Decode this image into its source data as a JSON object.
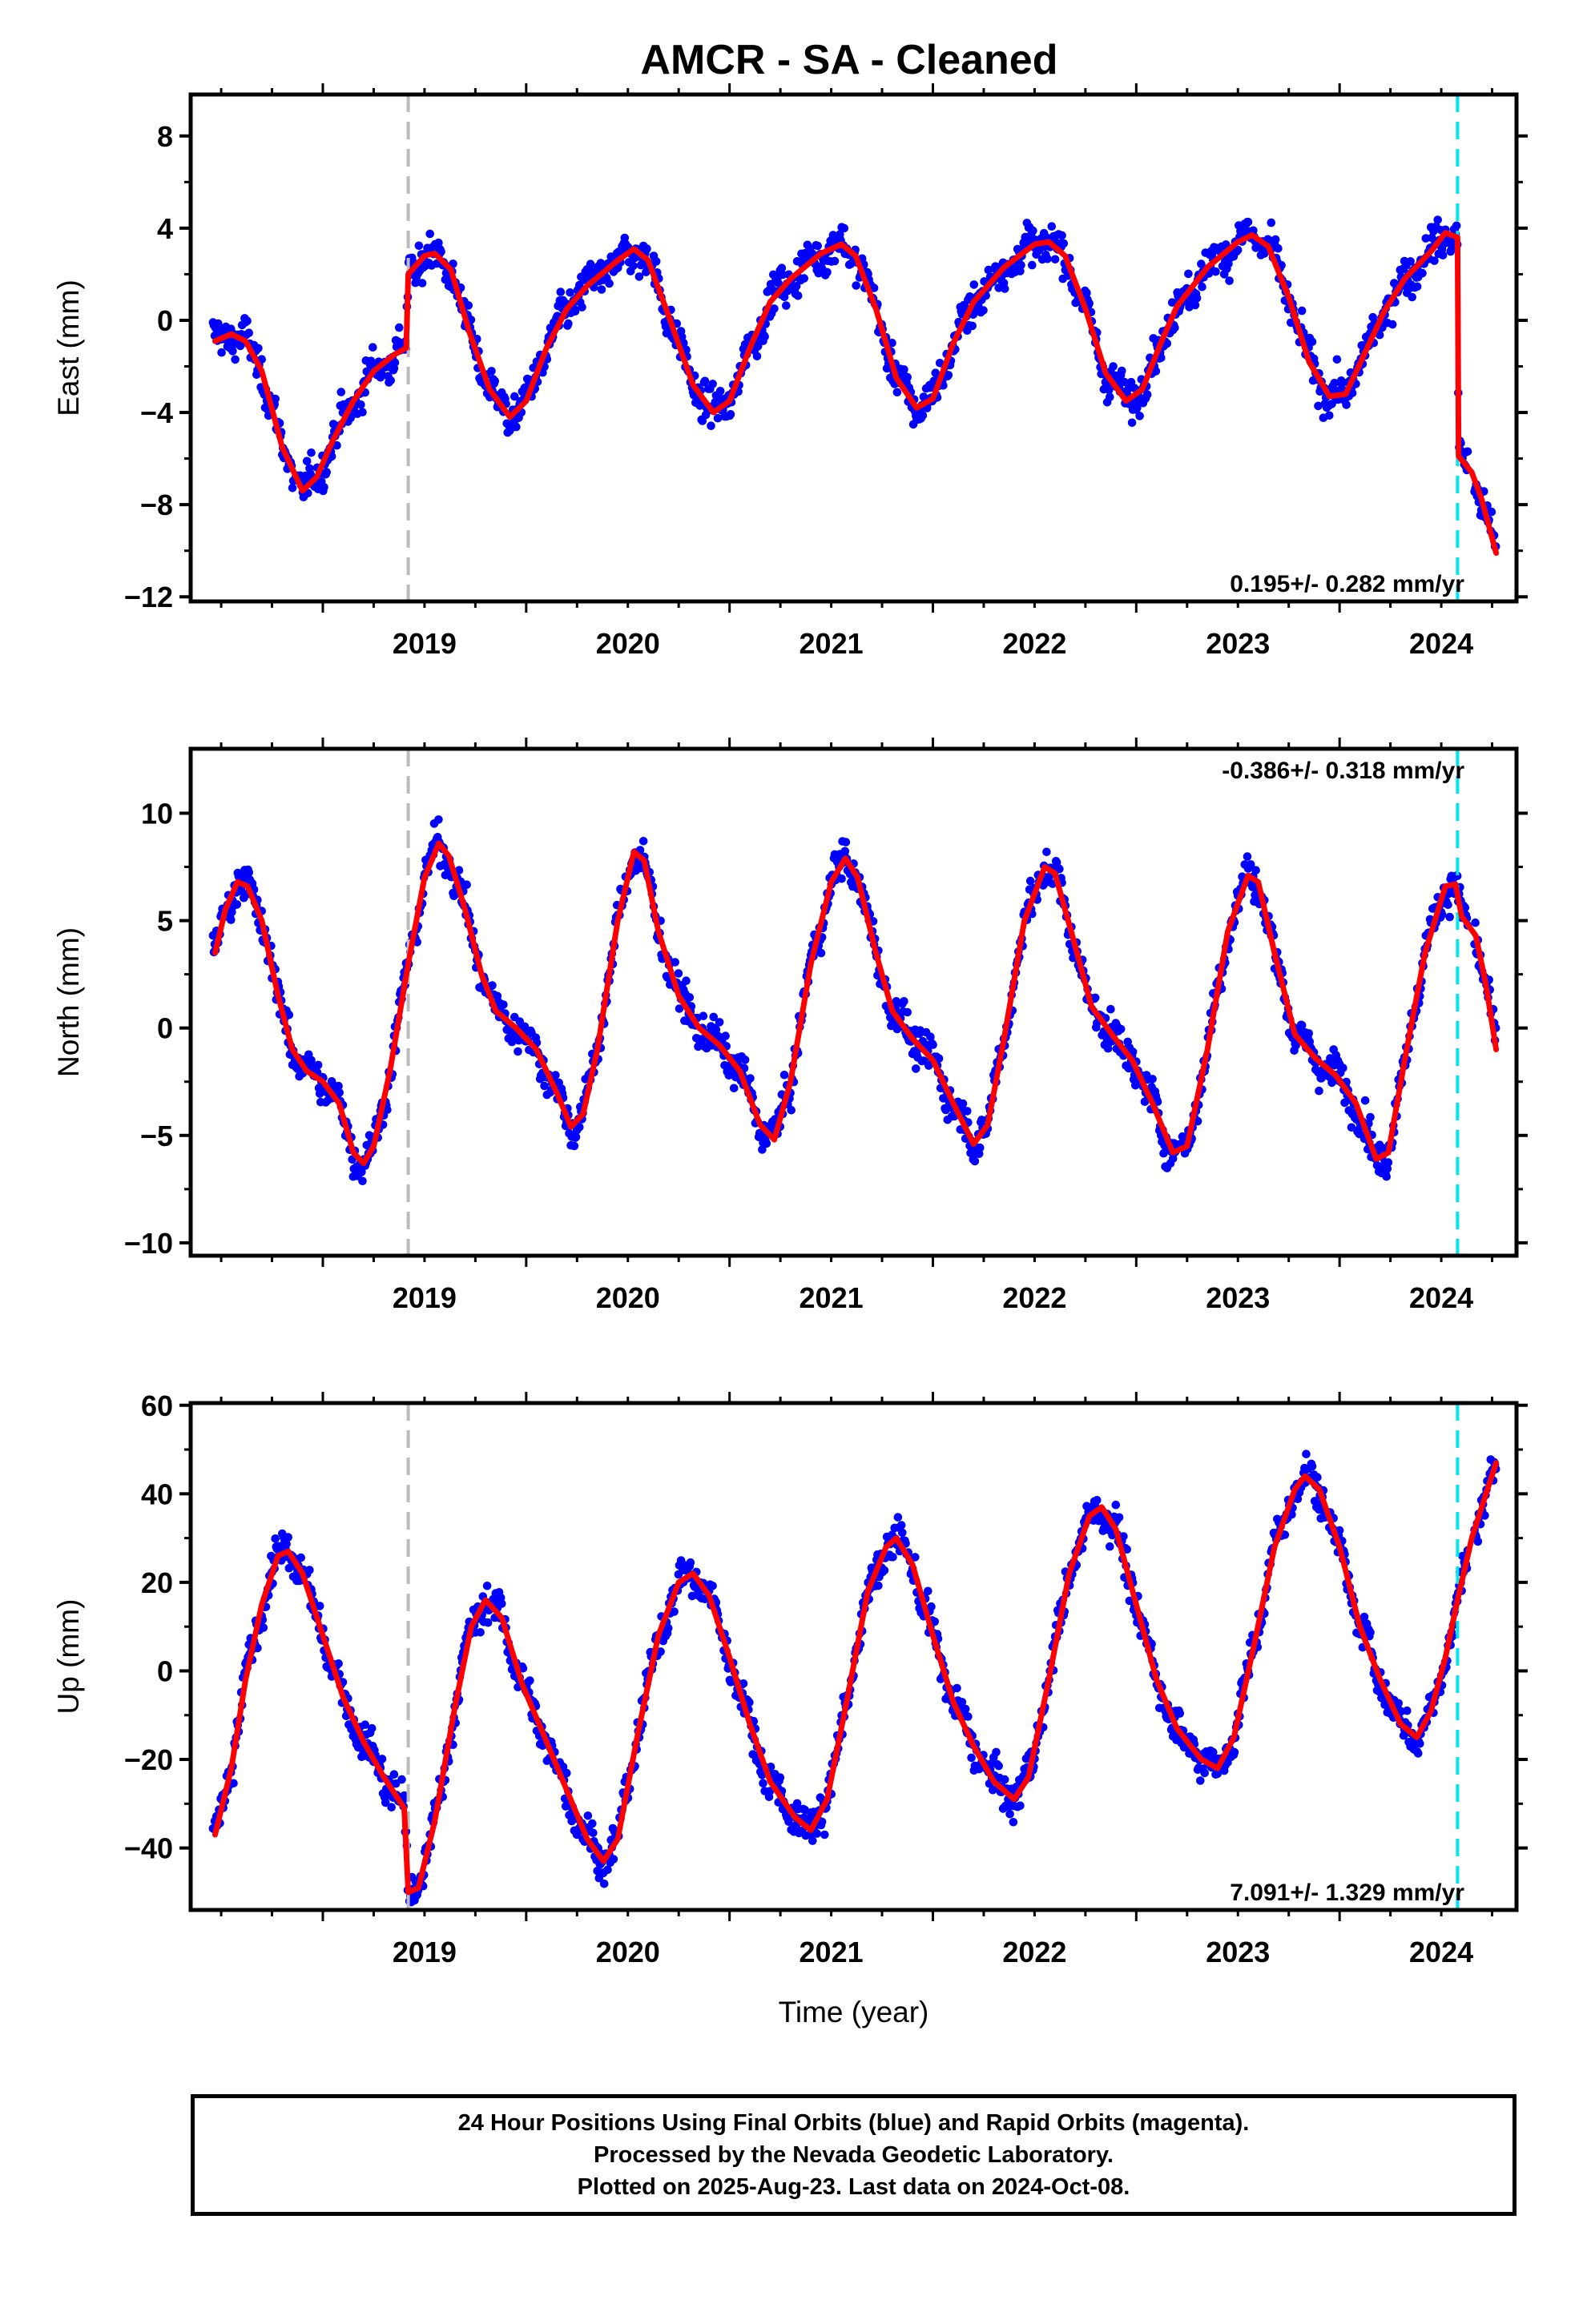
{
  "title": "AMCR  - SA - Cleaned",
  "caption": [
    "24 Hour Positions Using Final Orbits (blue) and Rapid Orbits (magenta).",
    "Processed by the Nevada Geodetic Laboratory.",
    "Plotted on 2025-Aug-23. Last data on 2024-Oct-08."
  ],
  "colors": {
    "points": "#0000ff",
    "model": "#ff0000",
    "gray_line": "#bbbbbb",
    "cyan_line": "#00e5ee"
  },
  "chart_data": [
    {
      "type": "scatter",
      "ylabel": "East (mm)",
      "xlabel": "",
      "xlim": [
        2018.35,
        2024.87
      ],
      "ylim": [
        -12.2,
        9.8
      ],
      "yticks": [
        -12,
        -8,
        -4,
        0,
        4,
        8
      ],
      "xticks": [
        2019,
        2020,
        2021,
        2022,
        2023,
        2024
      ],
      "rate": "0.195+/- 0.282 mm/yr",
      "rate_position": "bottom-right",
      "vlines": {
        "gray": 2019.42,
        "cyan": 2024.58
      },
      "model": [
        [
          2018.47,
          -0.9
        ],
        [
          2018.55,
          -0.6
        ],
        [
          2018.62,
          -0.9
        ],
        [
          2018.7,
          -2.2
        ],
        [
          2018.8,
          -5.5
        ],
        [
          2018.9,
          -7.4
        ],
        [
          2018.97,
          -6.8
        ],
        [
          2019.05,
          -5.2
        ],
        [
          2019.15,
          -3.5
        ],
        [
          2019.25,
          -2.2
        ],
        [
          2019.35,
          -1.5
        ],
        [
          2019.41,
          -1.2
        ],
        [
          2019.42,
          2.0
        ],
        [
          2019.5,
          2.8
        ],
        [
          2019.55,
          2.9
        ],
        [
          2019.63,
          2.2
        ],
        [
          2019.72,
          -0.5
        ],
        [
          2019.82,
          -3.0
        ],
        [
          2019.92,
          -4.2
        ],
        [
          2020.0,
          -3.5
        ],
        [
          2020.1,
          -1.2
        ],
        [
          2020.2,
          0.5
        ],
        [
          2020.3,
          1.5
        ],
        [
          2020.45,
          2.6
        ],
        [
          2020.53,
          3.1
        ],
        [
          2020.6,
          2.6
        ],
        [
          2020.7,
          0.2
        ],
        [
          2020.82,
          -2.8
        ],
        [
          2020.92,
          -4.0
        ],
        [
          2021.0,
          -3.5
        ],
        [
          2021.1,
          -1.2
        ],
        [
          2021.2,
          0.8
        ],
        [
          2021.3,
          1.8
        ],
        [
          2021.45,
          2.9
        ],
        [
          2021.55,
          3.3
        ],
        [
          2021.62,
          2.8
        ],
        [
          2021.72,
          0.5
        ],
        [
          2021.82,
          -2.5
        ],
        [
          2021.92,
          -3.8
        ],
        [
          2022.0,
          -3.4
        ],
        [
          2022.1,
          -1.0
        ],
        [
          2022.2,
          0.8
        ],
        [
          2022.35,
          2.3
        ],
        [
          2022.5,
          3.3
        ],
        [
          2022.57,
          3.4
        ],
        [
          2022.65,
          2.8
        ],
        [
          2022.75,
          0.5
        ],
        [
          2022.85,
          -2.3
        ],
        [
          2022.95,
          -3.5
        ],
        [
          2023.03,
          -3.0
        ],
        [
          2023.12,
          -1.0
        ],
        [
          2023.2,
          0.6
        ],
        [
          2023.35,
          2.3
        ],
        [
          2023.5,
          3.4
        ],
        [
          2023.57,
          3.7
        ],
        [
          2023.65,
          3.2
        ],
        [
          2023.75,
          1.0
        ],
        [
          2023.85,
          -1.8
        ],
        [
          2023.95,
          -3.3
        ],
        [
          2024.03,
          -3.2
        ],
        [
          2024.12,
          -1.5
        ],
        [
          2024.22,
          0.4
        ],
        [
          2024.32,
          1.8
        ],
        [
          2024.45,
          3.0
        ],
        [
          2024.52,
          3.8
        ],
        [
          2024.58,
          3.6
        ],
        [
          2024.585,
          -5.9
        ],
        [
          2024.65,
          -6.6
        ],
        [
          2024.7,
          -7.8
        ],
        [
          2024.77,
          -10.1
        ]
      ],
      "points_sample": "daily GNSS positions (blue dots) scattered around model"
    },
    {
      "type": "scatter",
      "ylabel": "North (mm)",
      "xlabel": "",
      "xlim": [
        2018.35,
        2024.87
      ],
      "ylim": [
        -10.6,
        13.0
      ],
      "yticks": [
        -10,
        -5,
        0,
        5,
        10
      ],
      "xticks": [
        2019,
        2020,
        2021,
        2022,
        2023,
        2024
      ],
      "rate": "-0.386+/- 0.318 mm/yr",
      "rate_position": "top-right",
      "vlines": {
        "gray": 2019.42,
        "cyan": 2024.58
      },
      "model": [
        [
          2018.47,
          3.5
        ],
        [
          2018.52,
          5.5
        ],
        [
          2018.58,
          6.8
        ],
        [
          2018.63,
          6.6
        ],
        [
          2018.7,
          5.0
        ],
        [
          2018.78,
          1.5
        ],
        [
          2018.85,
          -1.0
        ],
        [
          2018.92,
          -2.0
        ],
        [
          2019.0,
          -2.5
        ],
        [
          2019.08,
          -3.5
        ],
        [
          2019.15,
          -5.8
        ],
        [
          2019.2,
          -6.3
        ],
        [
          2019.25,
          -5.5
        ],
        [
          2019.33,
          -2.0
        ],
        [
          2019.42,
          3.0
        ],
        [
          2019.5,
          7.0
        ],
        [
          2019.57,
          8.6
        ],
        [
          2019.62,
          8.0
        ],
        [
          2019.7,
          5.5
        ],
        [
          2019.78,
          2.5
        ],
        [
          2019.85,
          0.8
        ],
        [
          2019.95,
          0.0
        ],
        [
          2020.05,
          -1.0
        ],
        [
          2020.15,
          -3.0
        ],
        [
          2020.22,
          -4.6
        ],
        [
          2020.28,
          -4.0
        ],
        [
          2020.35,
          -1.0
        ],
        [
          2020.45,
          5.0
        ],
        [
          2020.53,
          8.2
        ],
        [
          2020.58,
          7.8
        ],
        [
          2020.65,
          4.5
        ],
        [
          2020.75,
          1.5
        ],
        [
          2020.85,
          0.0
        ],
        [
          2020.95,
          -0.8
        ],
        [
          2021.05,
          -2.0
        ],
        [
          2021.15,
          -4.5
        ],
        [
          2021.22,
          -5.2
        ],
        [
          2021.3,
          -2.5
        ],
        [
          2021.4,
          3.0
        ],
        [
          2021.5,
          6.8
        ],
        [
          2021.57,
          7.9
        ],
        [
          2021.63,
          7.0
        ],
        [
          2021.72,
          3.5
        ],
        [
          2021.8,
          0.8
        ],
        [
          2021.9,
          -0.5
        ],
        [
          2022.0,
          -1.5
        ],
        [
          2022.1,
          -3.5
        ],
        [
          2022.2,
          -5.4
        ],
        [
          2022.27,
          -4.5
        ],
        [
          2022.35,
          -0.5
        ],
        [
          2022.45,
          5.0
        ],
        [
          2022.55,
          7.5
        ],
        [
          2022.6,
          7.2
        ],
        [
          2022.68,
          4.5
        ],
        [
          2022.78,
          1.0
        ],
        [
          2022.88,
          -0.3
        ],
        [
          2022.98,
          -1.5
        ],
        [
          2023.08,
          -3.5
        ],
        [
          2023.18,
          -5.8
        ],
        [
          2023.25,
          -5.5
        ],
        [
          2023.35,
          -1.0
        ],
        [
          2023.45,
          4.5
        ],
        [
          2023.55,
          7.1
        ],
        [
          2023.6,
          6.8
        ],
        [
          2023.68,
          3.5
        ],
        [
          2023.78,
          -0.3
        ],
        [
          2023.88,
          -1.4
        ],
        [
          2023.98,
          -2.2
        ],
        [
          2024.08,
          -3.5
        ],
        [
          2024.18,
          -6.1
        ],
        [
          2024.24,
          -5.8
        ],
        [
          2024.32,
          -1.5
        ],
        [
          2024.42,
          3.5
        ],
        [
          2024.52,
          6.6
        ],
        [
          2024.57,
          6.7
        ],
        [
          2024.6,
          5.2
        ],
        [
          2024.67,
          4.3
        ],
        [
          2024.72,
          2.0
        ],
        [
          2024.77,
          -1.0
        ]
      ],
      "points_sample": "daily GNSS positions (blue dots) scattered around model"
    },
    {
      "type": "scatter",
      "ylabel": "Up (mm)",
      "xlabel": "Time (year)",
      "xlim": [
        2018.35,
        2024.87
      ],
      "ylim": [
        -54,
        60.5
      ],
      "yticks": [
        -40,
        -20,
        0,
        20,
        40,
        60
      ],
      "xticks": [
        2019,
        2020,
        2021,
        2022,
        2023,
        2024
      ],
      "rate": "7.091+/- 1.329 mm/yr",
      "rate_position": "bottom-right",
      "vlines": {
        "gray": 2019.42,
        "cyan": 2024.58
      },
      "model": [
        [
          2018.47,
          -37
        ],
        [
          2018.55,
          -22
        ],
        [
          2018.62,
          -2
        ],
        [
          2018.7,
          15
        ],
        [
          2018.78,
          26
        ],
        [
          2018.83,
          27
        ],
        [
          2018.9,
          22
        ],
        [
          2019.0,
          8
        ],
        [
          2019.1,
          -6
        ],
        [
          2019.2,
          -16
        ],
        [
          2019.3,
          -24
        ],
        [
          2019.4,
          -31
        ],
        [
          2019.42,
          -50
        ],
        [
          2019.47,
          -49
        ],
        [
          2019.55,
          -34
        ],
        [
          2019.65,
          -8
        ],
        [
          2019.73,
          10
        ],
        [
          2019.8,
          16
        ],
        [
          2019.88,
          12
        ],
        [
          2019.98,
          -3
        ],
        [
          2020.1,
          -16
        ],
        [
          2020.2,
          -27
        ],
        [
          2020.3,
          -38
        ],
        [
          2020.38,
          -43
        ],
        [
          2020.45,
          -38
        ],
        [
          2020.55,
          -14
        ],
        [
          2020.65,
          8
        ],
        [
          2020.75,
          20
        ],
        [
          2020.82,
          22
        ],
        [
          2020.9,
          17
        ],
        [
          2021.0,
          3
        ],
        [
          2021.1,
          -12
        ],
        [
          2021.2,
          -25
        ],
        [
          2021.32,
          -33
        ],
        [
          2021.4,
          -36
        ],
        [
          2021.48,
          -29
        ],
        [
          2021.58,
          -6
        ],
        [
          2021.68,
          18
        ],
        [
          2021.77,
          28
        ],
        [
          2021.82,
          30
        ],
        [
          2021.9,
          24
        ],
        [
          2022.0,
          8
        ],
        [
          2022.1,
          -7
        ],
        [
          2022.2,
          -17
        ],
        [
          2022.3,
          -25
        ],
        [
          2022.4,
          -29
        ],
        [
          2022.47,
          -24
        ],
        [
          2022.57,
          -2
        ],
        [
          2022.67,
          22
        ],
        [
          2022.77,
          35
        ],
        [
          2022.83,
          37
        ],
        [
          2022.9,
          32
        ],
        [
          2023.0,
          15
        ],
        [
          2023.1,
          -2
        ],
        [
          2023.2,
          -13
        ],
        [
          2023.32,
          -20
        ],
        [
          2023.4,
          -22
        ],
        [
          2023.48,
          -15
        ],
        [
          2023.58,
          6
        ],
        [
          2023.68,
          28
        ],
        [
          2023.78,
          41
        ],
        [
          2023.83,
          44
        ],
        [
          2023.9,
          41
        ],
        [
          2024.0,
          28
        ],
        [
          2024.1,
          10
        ],
        [
          2024.2,
          -2
        ],
        [
          2024.3,
          -12
        ],
        [
          2024.38,
          -15
        ],
        [
          2024.45,
          -9
        ],
        [
          2024.52,
          3
        ],
        [
          2024.58,
          16
        ],
        [
          2024.65,
          30
        ],
        [
          2024.72,
          40
        ],
        [
          2024.77,
          47
        ]
      ],
      "points_sample": "daily GNSS positions (blue dots) scattered around model"
    }
  ]
}
